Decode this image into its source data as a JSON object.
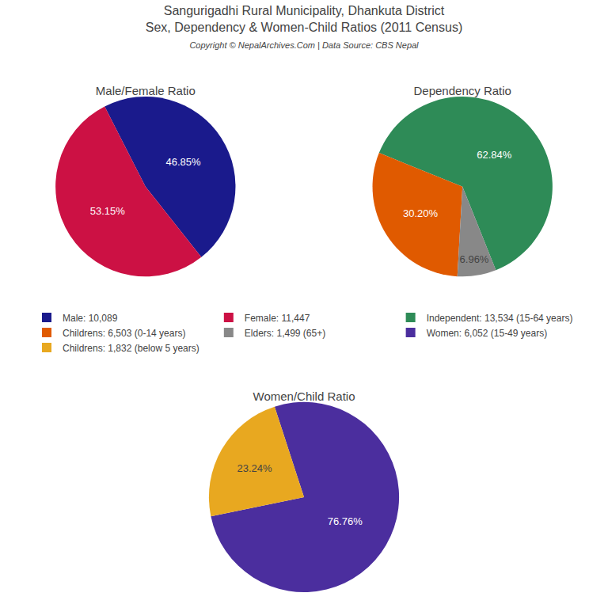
{
  "title": "Sangurigadhi Rural Municipality, Dhankuta District\nSex, Dependency & Women-Child Ratios (2011 Census)",
  "subtitle": "Copyright © NepalArchives.Com | Data Source: CBS Nepal",
  "legend": "center",
  "chart_data": [
    {
      "type": "pie",
      "title": "Male/Female Ratio",
      "categories": [
        "Male: 10,089",
        "Female: 11,447"
      ],
      "values": [
        46.85,
        53.15
      ],
      "value_labels": [
        "46.85%",
        "53.15%"
      ],
      "colors": [
        "#1a1a8c",
        "#cc1144"
      ],
      "data_labels": true
    },
    {
      "type": "pie",
      "title": "Dependency Ratio",
      "categories": [
        "Independent: 13,534 (15-64 years)",
        "Childrens: 6,503 (0-14 years)",
        "Elders: 1,499 (65+)"
      ],
      "values": [
        62.84,
        30.2,
        6.96
      ],
      "value_labels": [
        "62.84%",
        "30.20%",
        "6.96%"
      ],
      "colors": [
        "#2e8b57",
        "#e05a00",
        "#888888"
      ],
      "data_labels": true
    },
    {
      "type": "pie",
      "title": "Women/Child Ratio",
      "categories": [
        "Women: 6,052 (15-49 years)",
        "Childrens: 1,832 (below 5 years)"
      ],
      "values": [
        76.76,
        23.24
      ],
      "value_labels": [
        "76.76%",
        "23.24%"
      ],
      "colors": [
        "#4b2e9e",
        "#e8a820"
      ],
      "data_labels": true
    }
  ]
}
